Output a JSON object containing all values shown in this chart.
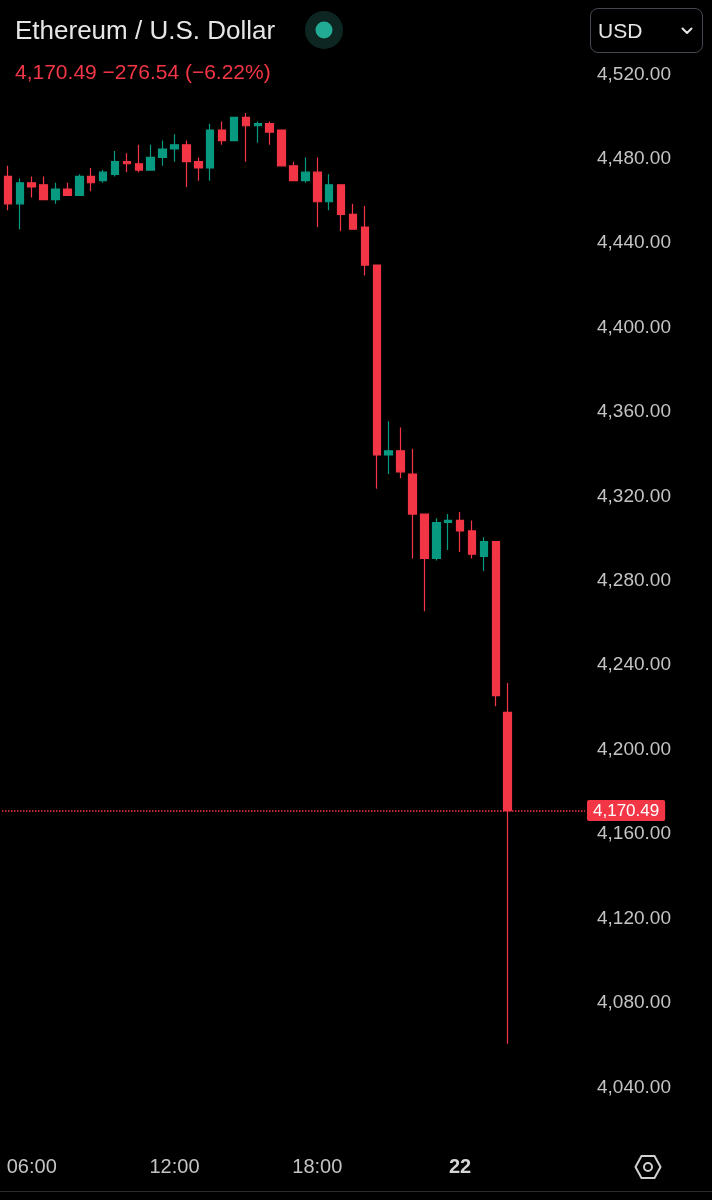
{
  "chart_data": {
    "type": "candlestick",
    "title": "Ethereum / U.S. Dollar",
    "subtitle": "4,170.49 −276.54 (−6.22%)",
    "ylabel": "USD",
    "categories": [
      null,
      null,
      "06:00",
      null,
      null,
      null,
      null,
      null,
      null,
      null,
      null,
      null,
      null,
      null,
      "12:00",
      null,
      null,
      null,
      null,
      null,
      null,
      null,
      null,
      null,
      null,
      null,
      "18:00",
      null,
      null,
      null,
      null,
      null,
      null,
      null,
      null,
      null,
      null,
      null,
      "22",
      null,
      null,
      null,
      null
    ],
    "ohlc": [
      [
        4471,
        4476,
        4455,
        4458
      ],
      [
        4458,
        4470,
        4446,
        4468
      ],
      [
        4468,
        4471,
        4461,
        4466
      ],
      [
        4467,
        4471,
        4460,
        4460
      ],
      [
        4460,
        4468,
        4458,
        4465
      ],
      [
        4465,
        4468,
        4462,
        4462
      ],
      [
        4462,
        4472,
        4462,
        4471
      ],
      [
        4471,
        4475,
        4464,
        4468
      ],
      [
        4469,
        4474,
        4468,
        4473
      ],
      [
        4472,
        4483,
        4471,
        4478
      ],
      [
        4478,
        4482,
        4473,
        4477
      ],
      [
        4477,
        4486,
        4473,
        4474
      ],
      [
        4474,
        4486,
        4474,
        4480
      ],
      [
        4480,
        4488,
        4476,
        4484
      ],
      [
        4484,
        4491,
        4478,
        4486
      ],
      [
        4486,
        4488,
        4466,
        4478
      ],
      [
        4478,
        4480,
        4469,
        4475
      ],
      [
        4475,
        4496,
        4469,
        4493
      ],
      [
        4493,
        4497,
        4486,
        4488
      ],
      [
        4488,
        4499,
        4488,
        4499
      ],
      [
        4499,
        4501,
        4478,
        4495
      ],
      [
        4495,
        4497,
        4487,
        4496
      ],
      [
        4496,
        4497,
        4486,
        4492
      ],
      [
        4493,
        4493,
        4476,
        4476
      ],
      [
        4476,
        4478,
        4469,
        4469
      ],
      [
        4469,
        4480,
        4468,
        4473
      ],
      [
        4473,
        4480,
        4447,
        4459
      ],
      [
        4459,
        4472,
        4455,
        4467
      ],
      [
        4467,
        4467,
        4445,
        4453
      ],
      [
        4453,
        4458,
        4446,
        4446
      ],
      [
        4447,
        4457,
        4424,
        4429
      ],
      [
        4429,
        4429,
        4323,
        4339
      ],
      [
        4339,
        4355,
        4330,
        4341
      ],
      [
        4341,
        4352,
        4328,
        4331
      ],
      [
        4330,
        4342,
        4290,
        4311
      ],
      [
        4311,
        4311,
        4265,
        4290
      ],
      [
        4290,
        4309,
        4289,
        4307
      ],
      [
        4307,
        4311,
        4294,
        4308
      ],
      [
        4308,
        4312,
        4293,
        4303
      ],
      [
        4303,
        4308,
        4290,
        4292
      ],
      [
        4291,
        4300,
        4284,
        4298
      ],
      [
        4298,
        4298,
        4220,
        4225
      ],
      [
        4217,
        4231,
        4060,
        4170.49
      ]
    ],
    "colors": [
      "#f23645",
      "#089981",
      "#f23645",
      "#f23645",
      "#089981",
      "#f23645",
      "#089981",
      "#f23645",
      "#089981",
      "#089981",
      "#f23645",
      "#f23645",
      "#089981",
      "#089981",
      "#089981",
      "#f23645",
      "#f23645",
      "#089981",
      "#f23645",
      "#089981",
      "#f23645",
      "#089981",
      "#f23645",
      "#f23645",
      "#f23645",
      "#089981",
      "#f23645",
      "#089981",
      "#f23645",
      "#f23645",
      "#f23645",
      "#f23645",
      "#089981",
      "#f23645",
      "#f23645",
      "#f23645",
      "#089981",
      "#089981",
      "#f23645",
      "#f23645",
      "#089981",
      "#f23645",
      "#f23645"
    ],
    "ylim": [
      4040,
      4520
    ],
    "yticks": [
      {
        "value": 4040,
        "label": "4,040.00"
      },
      {
        "value": 4080,
        "label": "4,080.00"
      },
      {
        "value": 4120,
        "label": "4,120.00"
      },
      {
        "value": 4160,
        "label": "4,160.00"
      },
      {
        "value": 4200,
        "label": "4,200.00"
      },
      {
        "value": 4240,
        "label": "4,240.00"
      },
      {
        "value": 4280,
        "label": "4,280.00"
      },
      {
        "value": 4320,
        "label": "4,320.00"
      },
      {
        "value": 4360,
        "label": "4,360.00"
      },
      {
        "value": 4400,
        "label": "4,400.00"
      },
      {
        "value": 4440,
        "label": "4,440.00"
      },
      {
        "value": 4480,
        "label": "4,480.00"
      },
      {
        "value": 4520,
        "label": "4,520.00"
      }
    ],
    "ref_lines": [
      {
        "axis": "y",
        "value": 4170.49,
        "label": "4,170.49",
        "color": "#f23645",
        "line_style": "dotted"
      }
    ]
  }
}
